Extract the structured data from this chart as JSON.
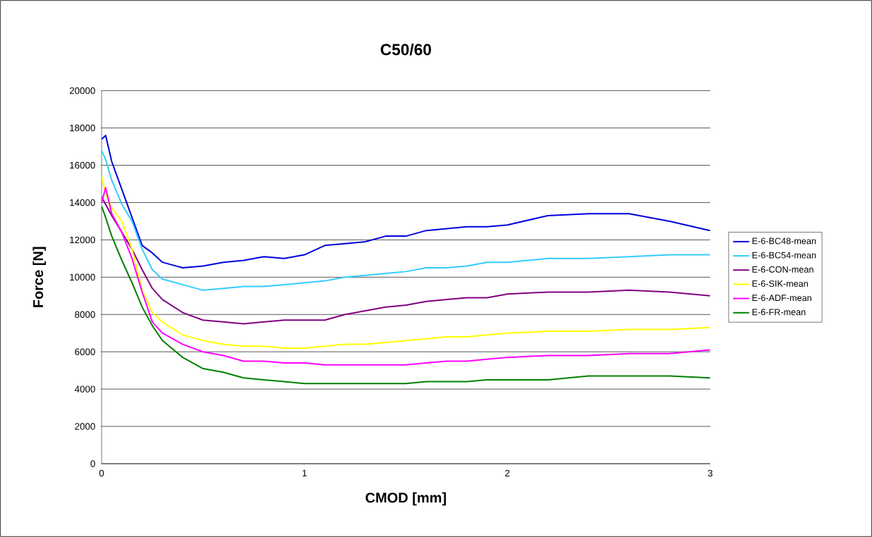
{
  "chart_data": {
    "type": "line",
    "title": "C50/60",
    "xlabel": "CMOD [mm]",
    "ylabel": "Force [N]",
    "x": [
      0,
      0.02,
      0.05,
      0.1,
      0.15,
      0.2,
      0.25,
      0.3,
      0.4,
      0.5,
      0.6,
      0.7,
      0.8,
      0.9,
      1.0,
      1.1,
      1.2,
      1.3,
      1.4,
      1.5,
      1.6,
      1.7,
      1.8,
      1.9,
      2.0,
      2.2,
      2.4,
      2.6,
      2.8,
      3.0
    ],
    "series": [
      {
        "name": "E-6-BC48-mean",
        "color": "#0000dd",
        "values": [
          17400,
          17600,
          16200,
          14700,
          13200,
          11700,
          11300,
          10800,
          10500,
          10600,
          10800,
          10900,
          11100,
          11000,
          11200,
          11700,
          11800,
          11900,
          12200,
          12200,
          12500,
          12600,
          12700,
          12700,
          12800,
          13300,
          13400,
          13400,
          13000,
          12500
        ]
      },
      {
        "name": "E-6-BC54-mean",
        "color": "#33ccff",
        "values": [
          16800,
          16300,
          15200,
          13900,
          13000,
          11500,
          10400,
          9900,
          9600,
          9300,
          9400,
          9500,
          9500,
          9600,
          9700,
          9800,
          10000,
          10100,
          10200,
          10300,
          10500,
          10500,
          10600,
          10800,
          10800,
          11000,
          11000,
          11100,
          11200,
          11200
        ]
      },
      {
        "name": "E-6-CON-mean",
        "color": "#800080",
        "values": [
          14300,
          13900,
          13300,
          12400,
          11500,
          10400,
          9400,
          8800,
          8100,
          7700,
          7600,
          7500,
          7600,
          7700,
          7700,
          7700,
          8000,
          8200,
          8400,
          8500,
          8700,
          8800,
          8900,
          8900,
          9100,
          9200,
          9200,
          9300,
          9200,
          9000
        ]
      },
      {
        "name": "E-6-SIK-mean",
        "color": "#ffff00",
        "values": [
          15400,
          14500,
          13700,
          13000,
          11500,
          9300,
          8100,
          7600,
          6900,
          6600,
          6400,
          6300,
          6300,
          6200,
          6200,
          6300,
          6400,
          6400,
          6500,
          6600,
          6700,
          6800,
          6800,
          6900,
          7000,
          7100,
          7100,
          7200,
          7200,
          7300
        ]
      },
      {
        "name": "E-6-ADF-mean",
        "color": "#ff00ff",
        "values": [
          14000,
          14800,
          13400,
          12400,
          11000,
          9200,
          7600,
          7000,
          6400,
          6000,
          5800,
          5500,
          5500,
          5400,
          5400,
          5300,
          5300,
          5300,
          5300,
          5300,
          5400,
          5500,
          5500,
          5600,
          5700,
          5800,
          5800,
          5900,
          5900,
          6100
        ]
      },
      {
        "name": "E-6-FR-mean",
        "color": "#008000",
        "values": [
          13800,
          13200,
          12200,
          10900,
          9700,
          8400,
          7400,
          6600,
          5700,
          5100,
          4900,
          4600,
          4500,
          4400,
          4300,
          4300,
          4300,
          4300,
          4300,
          4300,
          4400,
          4400,
          4400,
          4500,
          4500,
          4500,
          4700,
          4700,
          4700,
          4600
        ]
      }
    ],
    "xlim": [
      0,
      3
    ],
    "xticks": [
      0,
      1,
      2,
      3
    ],
    "ylim": [
      0,
      20000
    ],
    "yticks": [
      0,
      2000,
      4000,
      6000,
      8000,
      10000,
      12000,
      14000,
      16000,
      18000,
      20000
    ],
    "grid": "y",
    "legend": "right",
    "marker": "none",
    "line_style": "solid"
  }
}
